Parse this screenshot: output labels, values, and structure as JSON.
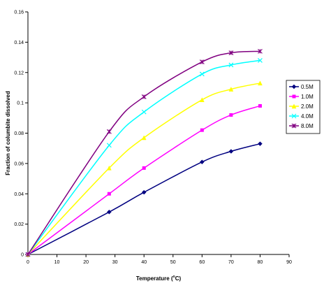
{
  "chart_data": {
    "type": "line",
    "title": "",
    "xlabel_main": "Temperature (",
    "xlabel_sup": "o",
    "xlabel_unit": "C)",
    "ylabel": "Fraction of columbite dissolved",
    "xlim": [
      0,
      90
    ],
    "ylim": [
      0,
      0.16
    ],
    "xticks": [
      0,
      10,
      20,
      30,
      40,
      50,
      60,
      70,
      80,
      90
    ],
    "yticks": [
      0,
      0.02,
      0.04,
      0.06,
      0.08,
      0.1,
      0.12,
      0.14,
      0.16
    ],
    "xtick_labels": [
      "0",
      "10",
      "20",
      "30",
      "40",
      "50",
      "60",
      "70",
      "80",
      "90"
    ],
    "ytick_labels": [
      "0",
      "0.02",
      "0.04",
      "0.06",
      "0.08",
      "0.1",
      "0.12",
      "0.14",
      "0.16"
    ],
    "grid": false,
    "legend_position": "right",
    "series": [
      {
        "name": "0.5M",
        "color": "#000080",
        "marker": "diamond",
        "x": [
          0,
          28,
          40,
          60,
          70,
          80
        ],
        "y": [
          0,
          0.028,
          0.041,
          0.061,
          0.068,
          0.073
        ]
      },
      {
        "name": "1.0M",
        "color": "#ff00ff",
        "marker": "square",
        "x": [
          0,
          28,
          40,
          60,
          70,
          80
        ],
        "y": [
          0,
          0.04,
          0.057,
          0.082,
          0.092,
          0.098
        ]
      },
      {
        "name": "2.0M",
        "color": "#ffff00",
        "marker": "triangle",
        "x": [
          0,
          28,
          40,
          60,
          70,
          80
        ],
        "y": [
          0,
          0.057,
          0.077,
          0.102,
          0.109,
          0.113
        ]
      },
      {
        "name": "4.0M",
        "color": "#00ffff",
        "marker": "x",
        "x": [
          0,
          28,
          40,
          60,
          70,
          80
        ],
        "y": [
          0,
          0.072,
          0.094,
          0.119,
          0.125,
          0.128
        ]
      },
      {
        "name": "8.0M",
        "color": "#800080",
        "marker": "star",
        "x": [
          0,
          28,
          40,
          60,
          70,
          80
        ],
        "y": [
          0,
          0.081,
          0.104,
          0.127,
          0.133,
          0.134
        ]
      }
    ]
  }
}
